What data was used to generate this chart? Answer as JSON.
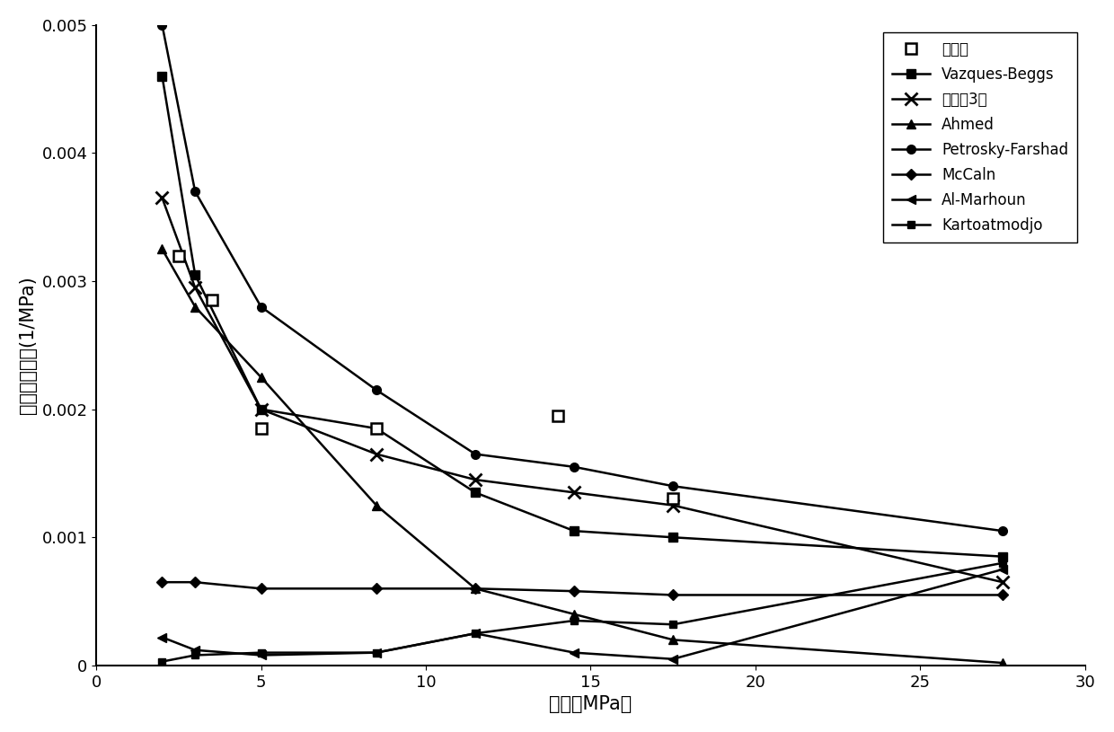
{
  "xlabel": "压力（MPa）",
  "ylabel": "原油压缩系数(1/MPa)",
  "xlim": [
    0,
    30
  ],
  "ylim": [
    0,
    0.005
  ],
  "xticks": [
    0,
    5,
    10,
    15,
    20,
    25,
    30
  ],
  "yticks": [
    0,
    0.001,
    0.002,
    0.003,
    0.004,
    0.005
  ],
  "ytick_labels": [
    "0",
    "0.001",
    "0.002",
    "0.003",
    "0.004",
    "0.005"
  ],
  "experimental": {
    "x": [
      2.5,
      3.5,
      5.0,
      8.5,
      14.0,
      17.5
    ],
    "y": [
      0.0032,
      0.00285,
      0.00185,
      0.00185,
      0.00195,
      0.0013
    ],
    "label": "实验值"
  },
  "vazques_beggs": {
    "x": [
      2.0,
      3.0,
      5.0,
      8.5,
      11.5,
      14.5,
      17.5,
      27.5
    ],
    "y": [
      0.0046,
      0.00305,
      0.002,
      0.00185,
      0.00135,
      0.00105,
      0.001,
      0.00085
    ],
    "label": "Vazques-Beggs"
  },
  "gongshi3": {
    "x": [
      2.0,
      3.0,
      5.0,
      8.5,
      11.5,
      14.5,
      17.5,
      27.5
    ],
    "y": [
      0.00365,
      0.00295,
      0.002,
      0.00165,
      0.00145,
      0.00135,
      0.00125,
      0.00065
    ],
    "label": "公式（3）"
  },
  "ahmed": {
    "x": [
      2.0,
      3.0,
      5.0,
      8.5,
      11.5,
      14.5,
      17.5,
      27.5
    ],
    "y": [
      0.00325,
      0.0028,
      0.00225,
      0.00125,
      0.0006,
      0.0004,
      0.0002,
      2e-05
    ],
    "label": "Ahmed"
  },
  "petrosky_farshad": {
    "x": [
      2.0,
      3.0,
      5.0,
      8.5,
      11.5,
      14.5,
      17.5,
      27.5
    ],
    "y": [
      0.005,
      0.0037,
      0.0028,
      0.00215,
      0.00165,
      0.00155,
      0.0014,
      0.00105
    ],
    "label": "Petrosky-Farshad"
  },
  "mccaln": {
    "x": [
      2.0,
      3.0,
      5.0,
      8.5,
      11.5,
      14.5,
      17.5,
      27.5
    ],
    "y": [
      0.00065,
      0.00065,
      0.0006,
      0.0006,
      0.0006,
      0.00058,
      0.00055,
      0.00055
    ],
    "label": "McCaln"
  },
  "al_marhoun": {
    "x": [
      2.0,
      3.0,
      5.0,
      8.5,
      11.5,
      14.5,
      17.5,
      27.5
    ],
    "y": [
      0.00022,
      0.00012,
      8e-05,
      0.0001,
      0.00025,
      0.0001,
      5e-05,
      0.00075
    ],
    "label": "Al-Marhoun"
  },
  "kartoatmodjo": {
    "x": [
      2.0,
      3.0,
      5.0,
      8.5,
      11.5,
      14.5,
      17.5,
      27.5
    ],
    "y": [
      3e-05,
      8e-05,
      0.0001,
      0.0001,
      0.00025,
      0.00035,
      0.00032,
      0.0008
    ],
    "label": "Kartoatmodjo"
  },
  "line_color": "#000000",
  "bg_color": "#ffffff",
  "fontsize_label": 15,
  "fontsize_tick": 13,
  "fontsize_legend": 12
}
